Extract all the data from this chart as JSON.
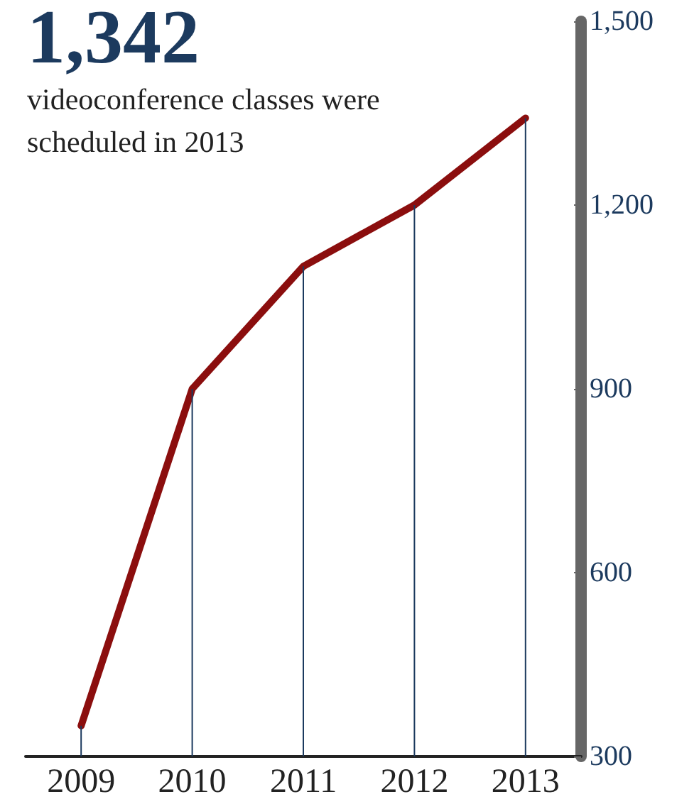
{
  "chart_data": {
    "type": "line",
    "title": "1,342",
    "subtitle": "videoconference classes were\nscheduled in 2013",
    "categories": [
      "2009",
      "2010",
      "2011",
      "2012",
      "2013"
    ],
    "series": [
      {
        "type": "bar",
        "color": "#1c3a5e",
        "values": [
          350,
          900,
          1100,
          1200,
          1342
        ]
      },
      {
        "color": "#8b0e0e",
        "values": [
          350,
          900,
          1100,
          1200,
          1342
        ]
      }
    ],
    "ylim": [
      300,
      1500
    ],
    "yticks": [
      300,
      600,
      900,
      {
        "value": 1200,
        "label": "1,200"
      },
      {
        "value": 1500,
        "label": "1,500"
      }
    ],
    "grid": false,
    "marker": "none",
    "line_style": "solid"
  }
}
